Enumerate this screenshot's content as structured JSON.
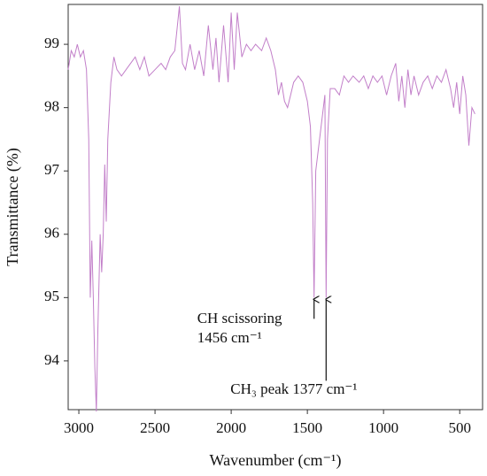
{
  "chart_data": {
    "type": "line",
    "xlabel": "Wavenumber (cm⁻¹)",
    "ylabel": "Transmittance (%)",
    "color": "#c27fc9",
    "xlim": [
      3070,
      350
    ],
    "xticks": [
      3000,
      2500,
      2000,
      1500,
      1000,
      500
    ],
    "ylim": [
      93.23,
      99.63
    ],
    "yticks": [
      94,
      95,
      96,
      97,
      98,
      99
    ],
    "x": [
      3070,
      3050,
      3030,
      3010,
      2990,
      2970,
      2950,
      2935,
      2925,
      2915,
      2905,
      2895,
      2885,
      2875,
      2860,
      2850,
      2840,
      2830,
      2820,
      2810,
      2790,
      2770,
      2750,
      2720,
      2690,
      2660,
      2630,
      2600,
      2570,
      2540,
      2500,
      2460,
      2430,
      2400,
      2370,
      2340,
      2320,
      2300,
      2270,
      2240,
      2210,
      2180,
      2150,
      2120,
      2100,
      2080,
      2050,
      2020,
      2000,
      1980,
      1960,
      1930,
      1900,
      1870,
      1840,
      1800,
      1770,
      1740,
      1710,
      1690,
      1670,
      1650,
      1630,
      1610,
      1590,
      1560,
      1530,
      1500,
      1480,
      1465,
      1456,
      1445,
      1420,
      1400,
      1385,
      1377,
      1368,
      1350,
      1320,
      1290,
      1260,
      1230,
      1200,
      1160,
      1130,
      1100,
      1070,
      1040,
      1010,
      980,
      950,
      920,
      900,
      880,
      860,
      840,
      820,
      800,
      770,
      740,
      710,
      680,
      650,
      620,
      590,
      560,
      540,
      520,
      500,
      480,
      460,
      440,
      420,
      400
    ],
    "values": [
      98.6,
      98.9,
      98.8,
      99.0,
      98.8,
      98.9,
      98.6,
      97.5,
      95.0,
      95.9,
      95.0,
      93.9,
      93.2,
      94.5,
      96.0,
      95.4,
      96.0,
      97.1,
      96.2,
      97.5,
      98.4,
      98.8,
      98.6,
      98.5,
      98.6,
      98.7,
      98.8,
      98.6,
      98.8,
      98.5,
      98.6,
      98.7,
      98.6,
      98.8,
      98.9,
      99.6,
      98.7,
      98.6,
      99.0,
      98.6,
      98.9,
      98.5,
      99.3,
      98.6,
      99.1,
      98.4,
      99.3,
      98.4,
      99.5,
      98.6,
      99.5,
      98.8,
      99.0,
      98.9,
      99.0,
      98.9,
      99.1,
      98.9,
      98.6,
      98.2,
      98.4,
      98.1,
      98.0,
      98.2,
      98.4,
      98.5,
      98.4,
      98.1,
      97.7,
      96.5,
      95.0,
      97.0,
      97.5,
      97.9,
      98.2,
      95.0,
      97.5,
      98.3,
      98.3,
      98.2,
      98.5,
      98.4,
      98.5,
      98.4,
      98.5,
      98.3,
      98.5,
      98.4,
      98.5,
      98.2,
      98.5,
      98.7,
      98.1,
      98.5,
      98.0,
      98.6,
      98.2,
      98.5,
      98.2,
      98.4,
      98.5,
      98.3,
      98.5,
      98.4,
      98.6,
      98.3,
      98.0,
      98.4,
      97.9,
      98.5,
      98.2,
      97.4,
      98.0,
      97.9
    ],
    "annotations": [
      {
        "text": [
          "CH scissoring",
          "1456 cm⁻¹"
        ],
        "x": 1456
      },
      {
        "text": [
          "CH₃ peak 1377 cm⁻¹"
        ],
        "x": 1377
      }
    ]
  }
}
